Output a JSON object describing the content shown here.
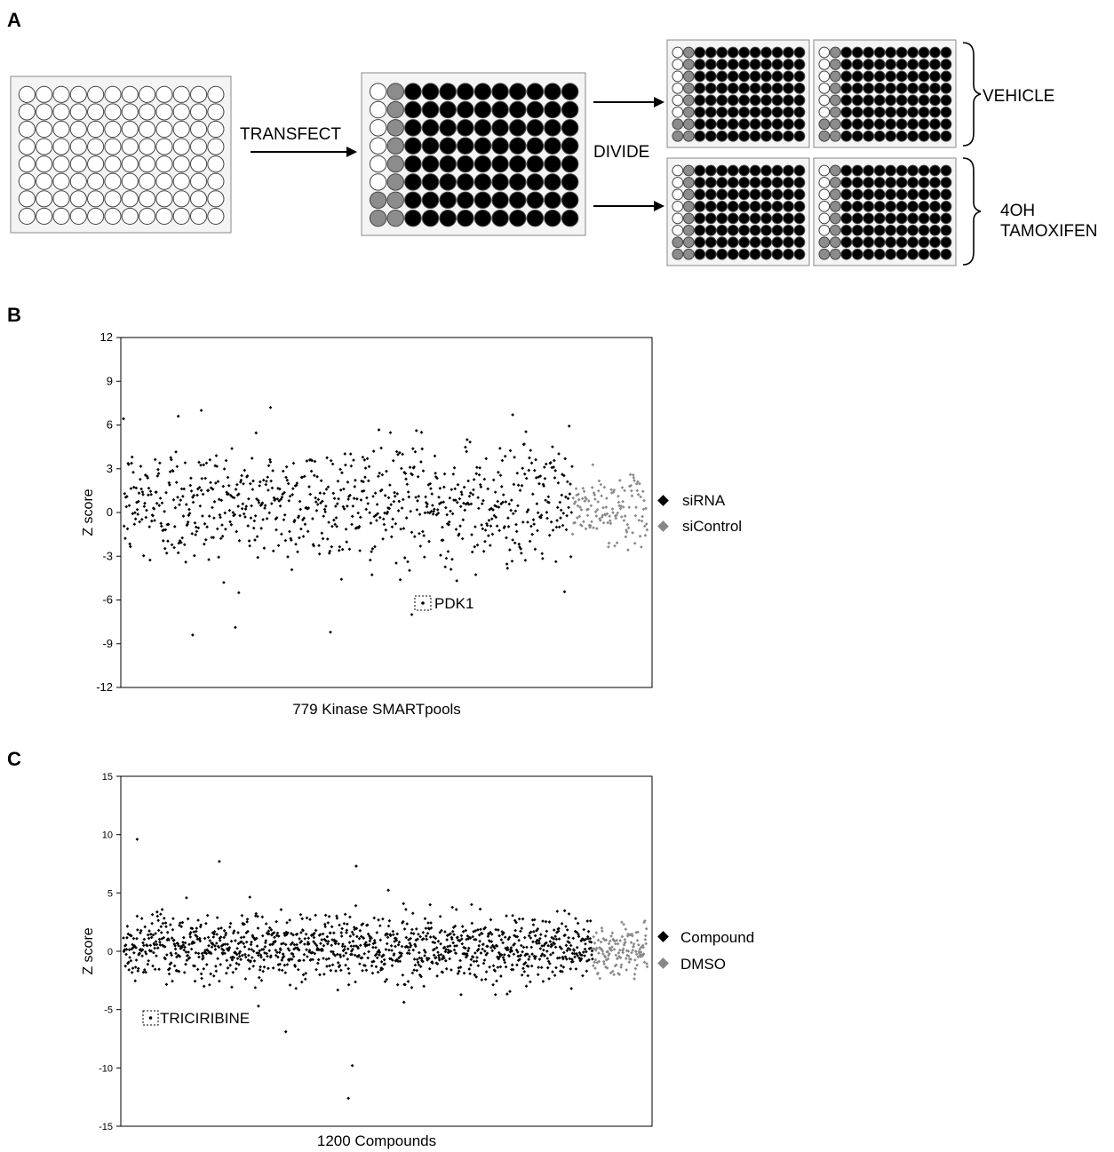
{
  "panel_a": {
    "letter": "A",
    "transfect_label": "TRANSFECT",
    "divide_label": "DIVIDE",
    "vehicle_label": "VEHICLE",
    "tamoxifen_label_1": "4OH",
    "tamoxifen_label_2": "TAMOXIFEN",
    "colors": {
      "empty_well": "#ffffff",
      "sample_well": "#000000",
      "control_well": "#8c8c8c"
    }
  },
  "chart_data": [
    {
      "type": "scatter",
      "panel_letter": "B",
      "xlabel": "779 Kinase SMARTpools",
      "ylabel": "Z score",
      "ylim": [
        -12,
        12
      ],
      "yticks": [
        "12",
        "9",
        "6",
        "3",
        "0",
        "-3",
        "-6",
        "-9",
        "-12"
      ],
      "grid": false,
      "legend_placement": "right",
      "series": [
        {
          "name": "siRNA",
          "color": "#000000",
          "count": 779,
          "sigma": 2.1,
          "scatter_center": 0.6,
          "notable": [
            {
              "label": "PDK1",
              "x": 430,
              "y": -6.0
            },
            {
              "x": 120,
              "y": -8.4
            },
            {
              "x": 200,
              "y": -5.5
            },
            {
              "x": 500,
              "y": -7.0
            },
            {
              "x": 95,
              "y": 6.6
            },
            {
              "x": 135,
              "y": 7.0
            },
            {
              "x": 255,
              "y": 7.2
            },
            {
              "x": 675,
              "y": 6.7
            }
          ]
        },
        {
          "name": "siControl",
          "color": "#888888",
          "count": 130,
          "sigma": 1.1,
          "scatter_center": 0.2
        }
      ]
    },
    {
      "type": "scatter",
      "panel_letter": "C",
      "xlabel": "1200 Compounds",
      "ylabel": "Z score",
      "ylim": [
        -15,
        15
      ],
      "yticks": [
        "15",
        "10",
        "5",
        "0",
        "-5",
        "-10",
        "-15"
      ],
      "grid": false,
      "legend_placement": "right",
      "series": [
        {
          "name": "Compound",
          "color": "#000000",
          "count": 1200,
          "sigma": 1.4,
          "scatter_center": 0.3,
          "notable": [
            {
              "label": "TRICIRIBINE",
              "x": 40,
              "y": -5.5
            },
            {
              "x": 35,
              "y": 9.6
            },
            {
              "x": 245,
              "y": 7.7
            },
            {
              "x": 595,
              "y": 7.3
            },
            {
              "x": 585,
              "y": -9.8
            },
            {
              "x": 575,
              "y": -12.6
            },
            {
              "x": 415,
              "y": -6.9
            },
            {
              "x": 345,
              "y": -4.7
            }
          ]
        },
        {
          "name": "DMSO",
          "color": "#888888",
          "count": 140,
          "sigma": 1.0,
          "scatter_center": 0.2
        }
      ]
    }
  ]
}
